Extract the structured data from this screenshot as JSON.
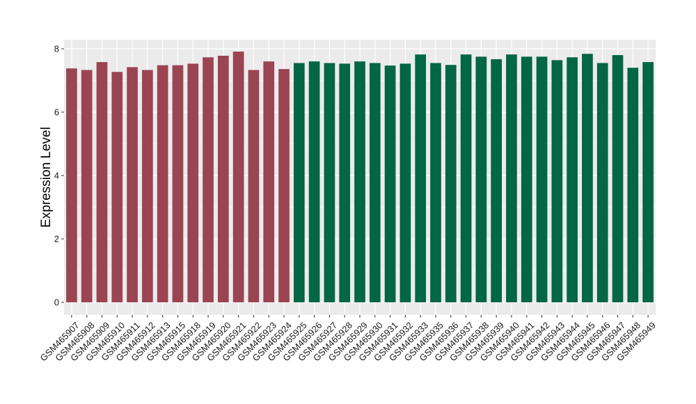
{
  "chart_data": {
    "type": "bar",
    "title": "",
    "xlabel": "",
    "ylabel": "Expression Level",
    "ylim": [
      0,
      8.3
    ],
    "yticks": [
      0,
      2,
      4,
      6,
      8
    ],
    "grid": true,
    "colors": {
      "group1": "#9b4452",
      "group2": "#036644",
      "panel": "#ebebeb",
      "gridline": "#ffffff"
    },
    "categories": [
      "GSM465907",
      "GSM465908",
      "GSM465909",
      "GSM465910",
      "GSM465911",
      "GSM465912",
      "GSM465913",
      "GSM465915",
      "GSM465918",
      "GSM465919",
      "GSM465920",
      "GSM465921",
      "GSM465922",
      "GSM465923",
      "GSM465924",
      "GSM465925",
      "GSM465926",
      "GSM465927",
      "GSM465928",
      "GSM465929",
      "GSM465930",
      "GSM465931",
      "GSM465932",
      "GSM465933",
      "GSM465935",
      "GSM465936",
      "GSM465937",
      "GSM465938",
      "GSM465939",
      "GSM465940",
      "GSM465941",
      "GSM465942",
      "GSM465943",
      "GSM465944",
      "GSM465945",
      "GSM465946",
      "GSM465947",
      "GSM465948",
      "GSM465949"
    ],
    "values": [
      7.38,
      7.33,
      7.58,
      7.27,
      7.42,
      7.33,
      7.48,
      7.48,
      7.53,
      7.73,
      7.78,
      7.91,
      7.33,
      7.6,
      7.36,
      7.55,
      7.6,
      7.55,
      7.53,
      7.6,
      7.55,
      7.47,
      7.53,
      7.82,
      7.55,
      7.49,
      7.82,
      7.75,
      7.67,
      7.82,
      7.75,
      7.75,
      7.64,
      7.73,
      7.84,
      7.55,
      7.8,
      7.4,
      7.58
    ],
    "group": [
      1,
      1,
      1,
      1,
      1,
      1,
      1,
      1,
      1,
      1,
      1,
      1,
      1,
      1,
      1,
      2,
      2,
      2,
      2,
      2,
      2,
      2,
      2,
      2,
      2,
      2,
      2,
      2,
      2,
      2,
      2,
      2,
      2,
      2,
      2,
      2,
      2,
      2,
      2
    ]
  }
}
